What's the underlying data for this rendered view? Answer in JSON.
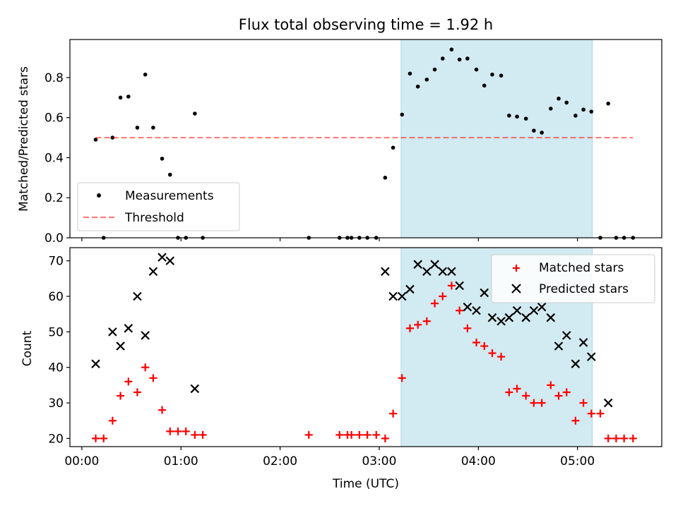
{
  "title": "Flux total observing time = 1.92 h",
  "colors": {
    "shade": "#add8e6",
    "threshold": "#ff0000",
    "matched": "#ff0000",
    "predicted": "#000000",
    "measurement": "#000000"
  },
  "shade_range_hours": [
    3.22,
    5.15
  ],
  "chart_data": [
    {
      "type": "scatter",
      "name": "ratio-panel",
      "ylabel": "Matched/Predicted stars",
      "xlabel": "",
      "xlim": [
        -0.12,
        5.85
      ],
      "ylim": [
        0,
        0.99
      ],
      "yticks": [
        0.0,
        0.2,
        0.4,
        0.6,
        0.8
      ],
      "ytick_labels": [
        "0.0",
        "0.2",
        "0.4",
        "0.6",
        "0.8"
      ],
      "xticks": [
        0,
        1,
        2,
        3,
        4,
        5
      ],
      "legend": "lower-left",
      "series": [
        {
          "name": "Measurements",
          "style": "dot",
          "points": [
            [
              0.14,
              0.49
            ],
            [
              0.22,
              0.0
            ],
            [
              0.31,
              0.5
            ],
            [
              0.39,
              0.7
            ],
            [
              0.47,
              0.705
            ],
            [
              0.56,
              0.55
            ],
            [
              0.64,
              0.815
            ],
            [
              0.72,
              0.55
            ],
            [
              0.81,
              0.395
            ],
            [
              0.89,
              0.315
            ],
            [
              0.97,
              0.0
            ],
            [
              1.05,
              0.0
            ],
            [
              1.14,
              0.62
            ],
            [
              1.22,
              0.0
            ],
            [
              2.29,
              0.0
            ],
            [
              2.6,
              0.0
            ],
            [
              2.68,
              0.0
            ],
            [
              2.72,
              0.0
            ],
            [
              2.8,
              0.0
            ],
            [
              2.88,
              0.0
            ],
            [
              2.97,
              0.0
            ],
            [
              3.06,
              0.3
            ],
            [
              3.14,
              0.45
            ],
            [
              3.23,
              0.615
            ],
            [
              3.31,
              0.82
            ],
            [
              3.39,
              0.755
            ],
            [
              3.48,
              0.79
            ],
            [
              3.56,
              0.84
            ],
            [
              3.64,
              0.895
            ],
            [
              3.73,
              0.94
            ],
            [
              3.81,
              0.89
            ],
            [
              3.89,
              0.895
            ],
            [
              3.98,
              0.84
            ],
            [
              4.06,
              0.76
            ],
            [
              4.14,
              0.815
            ],
            [
              4.23,
              0.81
            ],
            [
              4.31,
              0.61
            ],
            [
              4.39,
              0.605
            ],
            [
              4.48,
              0.595
            ],
            [
              4.56,
              0.535
            ],
            [
              4.64,
              0.525
            ],
            [
              4.73,
              0.645
            ],
            [
              4.81,
              0.695
            ],
            [
              4.89,
              0.675
            ],
            [
              4.98,
              0.61
            ],
            [
              5.06,
              0.64
            ],
            [
              5.14,
              0.63
            ],
            [
              5.23,
              0.0
            ],
            [
              5.31,
              0.67
            ],
            [
              5.39,
              0.0
            ],
            [
              5.47,
              0.0
            ],
            [
              5.56,
              0.0
            ]
          ]
        },
        {
          "name": "Threshold",
          "style": "dashed-line",
          "points": [
            [
              0.14,
              0.5
            ],
            [
              5.56,
              0.5
            ]
          ]
        }
      ]
    },
    {
      "type": "scatter",
      "name": "count-panel",
      "ylabel": "Count",
      "xlabel": "Time (UTC)",
      "xlim": [
        -0.12,
        5.85
      ],
      "ylim": [
        17.7,
        73.7
      ],
      "yticks": [
        20,
        30,
        40,
        50,
        60,
        70
      ],
      "ytick_labels": [
        "20",
        "30",
        "40",
        "50",
        "60",
        "70"
      ],
      "xticks": [
        0,
        1,
        2,
        3,
        4,
        5
      ],
      "xtick_labels": [
        "00:00",
        "01:00",
        "02:00",
        "03:00",
        "04:00",
        "05:00"
      ],
      "legend": "upper-right",
      "series": [
        {
          "name": "Matched stars",
          "style": "plus",
          "points": [
            [
              0.14,
              20
            ],
            [
              0.22,
              20
            ],
            [
              0.31,
              25
            ],
            [
              0.39,
              32
            ],
            [
              0.47,
              36
            ],
            [
              0.56,
              33
            ],
            [
              0.64,
              40
            ],
            [
              0.72,
              37
            ],
            [
              0.81,
              28
            ],
            [
              0.89,
              22
            ],
            [
              0.97,
              22
            ],
            [
              1.05,
              22
            ],
            [
              1.14,
              21
            ],
            [
              1.22,
              21
            ],
            [
              2.29,
              21
            ],
            [
              2.6,
              21
            ],
            [
              2.68,
              21
            ],
            [
              2.72,
              21
            ],
            [
              2.8,
              21
            ],
            [
              2.88,
              21
            ],
            [
              2.97,
              21
            ],
            [
              3.06,
              20
            ],
            [
              3.14,
              27
            ],
            [
              3.23,
              37
            ],
            [
              3.31,
              51
            ],
            [
              3.39,
              52
            ],
            [
              3.48,
              53
            ],
            [
              3.56,
              58
            ],
            [
              3.64,
              60
            ],
            [
              3.73,
              63
            ],
            [
              3.81,
              56
            ],
            [
              3.89,
              51
            ],
            [
              3.98,
              47
            ],
            [
              4.06,
              46
            ],
            [
              4.14,
              44
            ],
            [
              4.23,
              43
            ],
            [
              4.31,
              33
            ],
            [
              4.39,
              34
            ],
            [
              4.48,
              32
            ],
            [
              4.56,
              30
            ],
            [
              4.64,
              30
            ],
            [
              4.73,
              35
            ],
            [
              4.81,
              32
            ],
            [
              4.89,
              33
            ],
            [
              4.98,
              25
            ],
            [
              5.06,
              30
            ],
            [
              5.14,
              27
            ],
            [
              5.23,
              27
            ],
            [
              5.31,
              20
            ],
            [
              5.39,
              20
            ],
            [
              5.47,
              20
            ],
            [
              5.56,
              20
            ]
          ]
        },
        {
          "name": "Predicted stars",
          "style": "cross",
          "points": [
            [
              0.14,
              41
            ],
            [
              0.31,
              50
            ],
            [
              0.39,
              46
            ],
            [
              0.47,
              51
            ],
            [
              0.56,
              60
            ],
            [
              0.64,
              49
            ],
            [
              0.72,
              67
            ],
            [
              0.81,
              71
            ],
            [
              0.89,
              70
            ],
            [
              1.14,
              34
            ],
            [
              3.06,
              67
            ],
            [
              3.14,
              60
            ],
            [
              3.23,
              60
            ],
            [
              3.31,
              62
            ],
            [
              3.39,
              69
            ],
            [
              3.48,
              67
            ],
            [
              3.56,
              69
            ],
            [
              3.64,
              67
            ],
            [
              3.73,
              67
            ],
            [
              3.81,
              63
            ],
            [
              3.89,
              57
            ],
            [
              3.98,
              56
            ],
            [
              4.06,
              61
            ],
            [
              4.14,
              54
            ],
            [
              4.23,
              53
            ],
            [
              4.31,
              54
            ],
            [
              4.39,
              56
            ],
            [
              4.48,
              54
            ],
            [
              4.56,
              56
            ],
            [
              4.64,
              57
            ],
            [
              4.73,
              54
            ],
            [
              4.81,
              46
            ],
            [
              4.89,
              49
            ],
            [
              4.98,
              41
            ],
            [
              5.06,
              47
            ],
            [
              5.14,
              43
            ],
            [
              5.31,
              30
            ]
          ]
        }
      ]
    }
  ]
}
